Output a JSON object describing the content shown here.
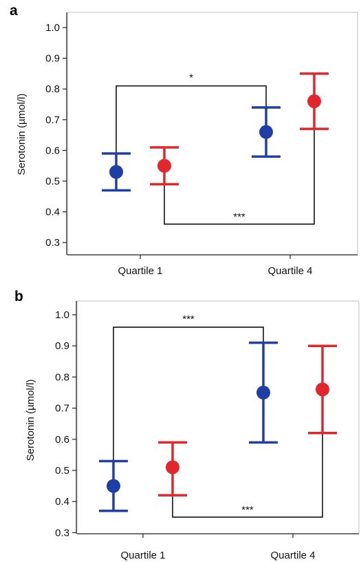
{
  "chart_data": [
    {
      "panel": "a",
      "type": "scatter",
      "ylabel": "Serotonin (µmol/l)",
      "ylim": [
        0.25,
        1.05
      ],
      "yticks": [
        "0.3",
        "0.4",
        "0.5",
        "0.6",
        "0.7",
        "0.8",
        "0.9",
        "1.0"
      ],
      "categories": [
        "Quartile 1",
        "Quartile 4"
      ],
      "colors": [
        "#1f3fa6",
        "#e3262b"
      ],
      "series": [
        {
          "color": "#1f3fa6",
          "points": [
            {
              "mean": 0.53,
              "low": 0.47,
              "high": 0.59
            },
            {
              "mean": 0.66,
              "low": 0.58,
              "high": 0.74
            }
          ]
        },
        {
          "color": "#e3262b",
          "points": [
            {
              "mean": 0.55,
              "low": 0.49,
              "high": 0.61
            },
            {
              "mean": 0.76,
              "low": 0.67,
              "high": 0.85
            }
          ]
        }
      ],
      "significance": [
        {
          "series": 0,
          "label": "*",
          "side": "top",
          "level": 0.81
        },
        {
          "series": 1,
          "label": "***",
          "side": "bottom",
          "level": 0.36
        }
      ]
    },
    {
      "panel": "b",
      "type": "scatter",
      "ylabel": "Serotonin (µmol/l)",
      "ylim": [
        0.25,
        1.05
      ],
      "yticks": [
        "0.3",
        "0.4",
        "0.5",
        "0.6",
        "0.7",
        "0.8",
        "0.9",
        "1.0"
      ],
      "categories": [
        "Quartile 1",
        "Quartile 4"
      ],
      "colors": [
        "#1f3fa6",
        "#e3262b"
      ],
      "series": [
        {
          "color": "#1f3fa6",
          "points": [
            {
              "mean": 0.45,
              "low": 0.37,
              "high": 0.53
            },
            {
              "mean": 0.75,
              "low": 0.59,
              "high": 0.91
            }
          ]
        },
        {
          "color": "#e3262b",
          "points": [
            {
              "mean": 0.51,
              "low": 0.42,
              "high": 0.59
            },
            {
              "mean": 0.76,
              "low": 0.62,
              "high": 0.9
            }
          ]
        }
      ],
      "significance": [
        {
          "series": 0,
          "label": "***",
          "side": "top",
          "level": 0.96
        },
        {
          "series": 1,
          "label": "***",
          "side": "bottom",
          "level": 0.35
        }
      ]
    }
  ]
}
